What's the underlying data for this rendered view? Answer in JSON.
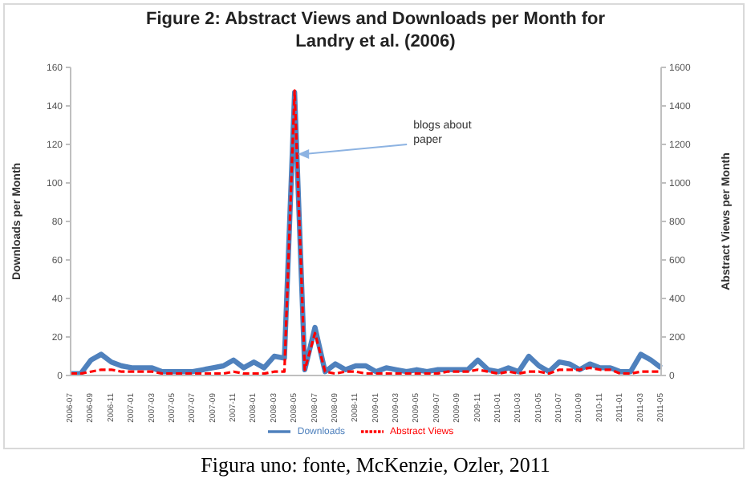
{
  "chart_data": {
    "type": "line",
    "title": "Figure 2: Abstract Views and Downloads per Month for Landry et al. (2006)",
    "ylabel": "Downloads per Month",
    "y2label": "Abstract Views per Month",
    "categories": [
      "2006-07",
      null,
      "2006-09",
      null,
      "2006-11",
      null,
      "2007-01",
      null,
      "2007-03",
      null,
      "2007-05",
      null,
      "2007-07",
      null,
      "2007-09",
      null,
      "2007-11",
      null,
      "2008-01",
      null,
      "2008-03",
      null,
      "2008-05",
      null,
      "2008-07",
      null,
      "2008-09",
      null,
      "2008-11",
      null,
      "2009-01",
      null,
      "2009-03",
      null,
      "2009-05",
      null,
      "2009-07",
      null,
      "2009-09",
      null,
      "2009-11",
      null,
      "2010-01",
      null,
      "2010-03",
      null,
      "2010-05",
      null,
      "2010-07",
      null,
      "2010-09",
      null,
      "2010-11",
      null,
      "2011-01",
      null,
      "2011-03",
      null,
      "2011-05"
    ],
    "series": [
      {
        "name": "Downloads",
        "color": "#4f81bd",
        "line_style": "solid",
        "values": [
          1,
          1,
          8,
          11,
          7,
          5,
          4,
          4,
          4,
          2,
          2,
          2,
          2,
          3,
          4,
          5,
          8,
          4,
          7,
          4,
          10,
          9,
          147,
          3,
          25,
          2,
          6,
          3,
          5,
          5,
          2,
          4,
          3,
          2,
          3,
          2,
          3,
          3,
          3,
          3,
          8,
          3,
          2,
          4,
          2,
          10,
          5,
          2,
          7,
          6,
          3,
          6,
          4,
          4,
          2,
          2,
          11,
          8,
          4
        ]
      },
      {
        "name": "Abstract Views",
        "color": "#ff0000",
        "line_style": "dashed",
        "axis": "y2",
        "values": [
          10,
          10,
          20,
          30,
          30,
          20,
          20,
          20,
          20,
          10,
          10,
          10,
          10,
          10,
          10,
          10,
          20,
          10,
          10,
          10,
          20,
          20,
          1480,
          30,
          220,
          20,
          10,
          20,
          20,
          10,
          10,
          10,
          10,
          10,
          10,
          10,
          10,
          20,
          20,
          20,
          30,
          20,
          10,
          20,
          10,
          20,
          20,
          10,
          30,
          30,
          30,
          40,
          30,
          30,
          10,
          10,
          20,
          20,
          20
        ]
      }
    ],
    "ylim": [
      0,
      160
    ],
    "yticks": [
      0,
      20,
      40,
      60,
      80,
      100,
      120,
      140,
      160
    ],
    "y2lim": [
      0,
      1600
    ],
    "y2ticks": [
      0,
      200,
      400,
      600,
      800,
      1000,
      1200,
      1400,
      1600
    ],
    "legend": "bottom",
    "marker": "none",
    "annotations": [
      {
        "text": "blogs about paper",
        "x": "2008-05",
        "y": 115
      },
      "Figura uno: fonte, McKenzie, Ozler, 2011"
    ]
  }
}
